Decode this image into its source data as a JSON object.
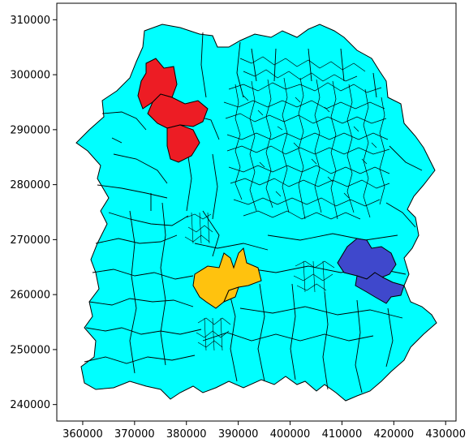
{
  "chart_data": {
    "type": "choropleth-map",
    "xlim": [
      355000,
      432000
    ],
    "ylim": [
      237000,
      313000
    ],
    "xticks": [
      360000,
      370000,
      380000,
      390000,
      400000,
      410000,
      420000,
      430000
    ],
    "yticks": [
      240000,
      250000,
      260000,
      270000,
      280000,
      290000,
      300000,
      310000
    ],
    "xtick_labels": [
      "360000",
      "370000",
      "380000",
      "390000",
      "400000",
      "410000",
      "420000",
      "430000"
    ],
    "ytick_labels": [
      "240000",
      "250000",
      "260000",
      "270000",
      "280000",
      "290000",
      "300000",
      "310000"
    ],
    "grid": false,
    "colors": {
      "base": "#00ffff",
      "edge": "#000000",
      "highlight_red": "#ed1c24",
      "highlight_yellow": "#ffc20e",
      "highlight_blue": "#3f48cc"
    },
    "highlighted_regions": [
      {
        "color": "highlight_red",
        "approx_x": [
          371000,
          383000
        ],
        "approx_y": [
          290000,
          306000
        ]
      },
      {
        "color": "highlight_yellow",
        "approx_x": [
          381000,
          395000
        ],
        "approx_y": [
          260000,
          272000
        ]
      },
      {
        "color": "highlight_blue",
        "approx_x": [
          409000,
          421000
        ],
        "approx_y": [
          259000,
          273000
        ]
      }
    ]
  }
}
